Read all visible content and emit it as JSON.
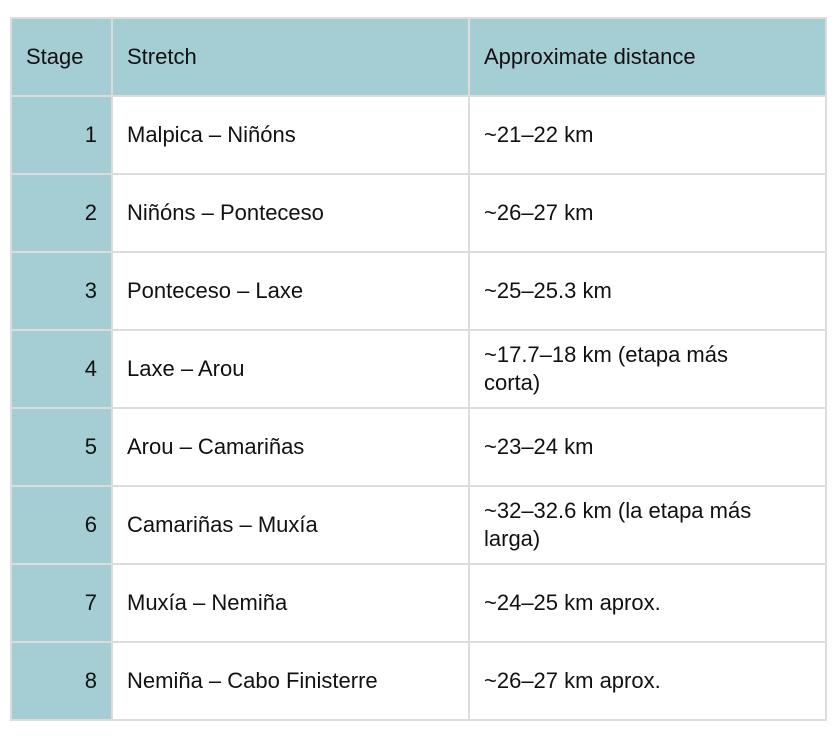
{
  "table": {
    "headers": [
      "Stage",
      "Stretch",
      "Approximate distance"
    ],
    "rows": [
      {
        "stage": "1",
        "stretch": "Malpica – Niñóns",
        "distance": "~21–22 km"
      },
      {
        "stage": "2",
        "stretch": "Niñóns – Ponteceso",
        "distance": "~26–27 km"
      },
      {
        "stage": "3",
        "stretch": "Ponteceso – Laxe",
        "distance": "~25–25.3 km"
      },
      {
        "stage": "4",
        "stretch": "Laxe – Arou",
        "distance": "~17.7–18 km (etapa más corta)"
      },
      {
        "stage": "5",
        "stretch": "Arou – Camariñas",
        "distance": "~23–24 km"
      },
      {
        "stage": "6",
        "stretch": "Camariñas – Muxía",
        "distance": "~32–32.6 km (la etapa más larga)"
      },
      {
        "stage": "7",
        "stretch": "Muxía – Nemiña",
        "distance": "~24–25 km aprox."
      },
      {
        "stage": "8",
        "stretch": "Nemiña – Cabo Finisterre",
        "distance": "~26–27 km aprox."
      }
    ]
  },
  "colors": {
    "header_bg": "#a5cdd4",
    "border": "#dcdcdc"
  }
}
